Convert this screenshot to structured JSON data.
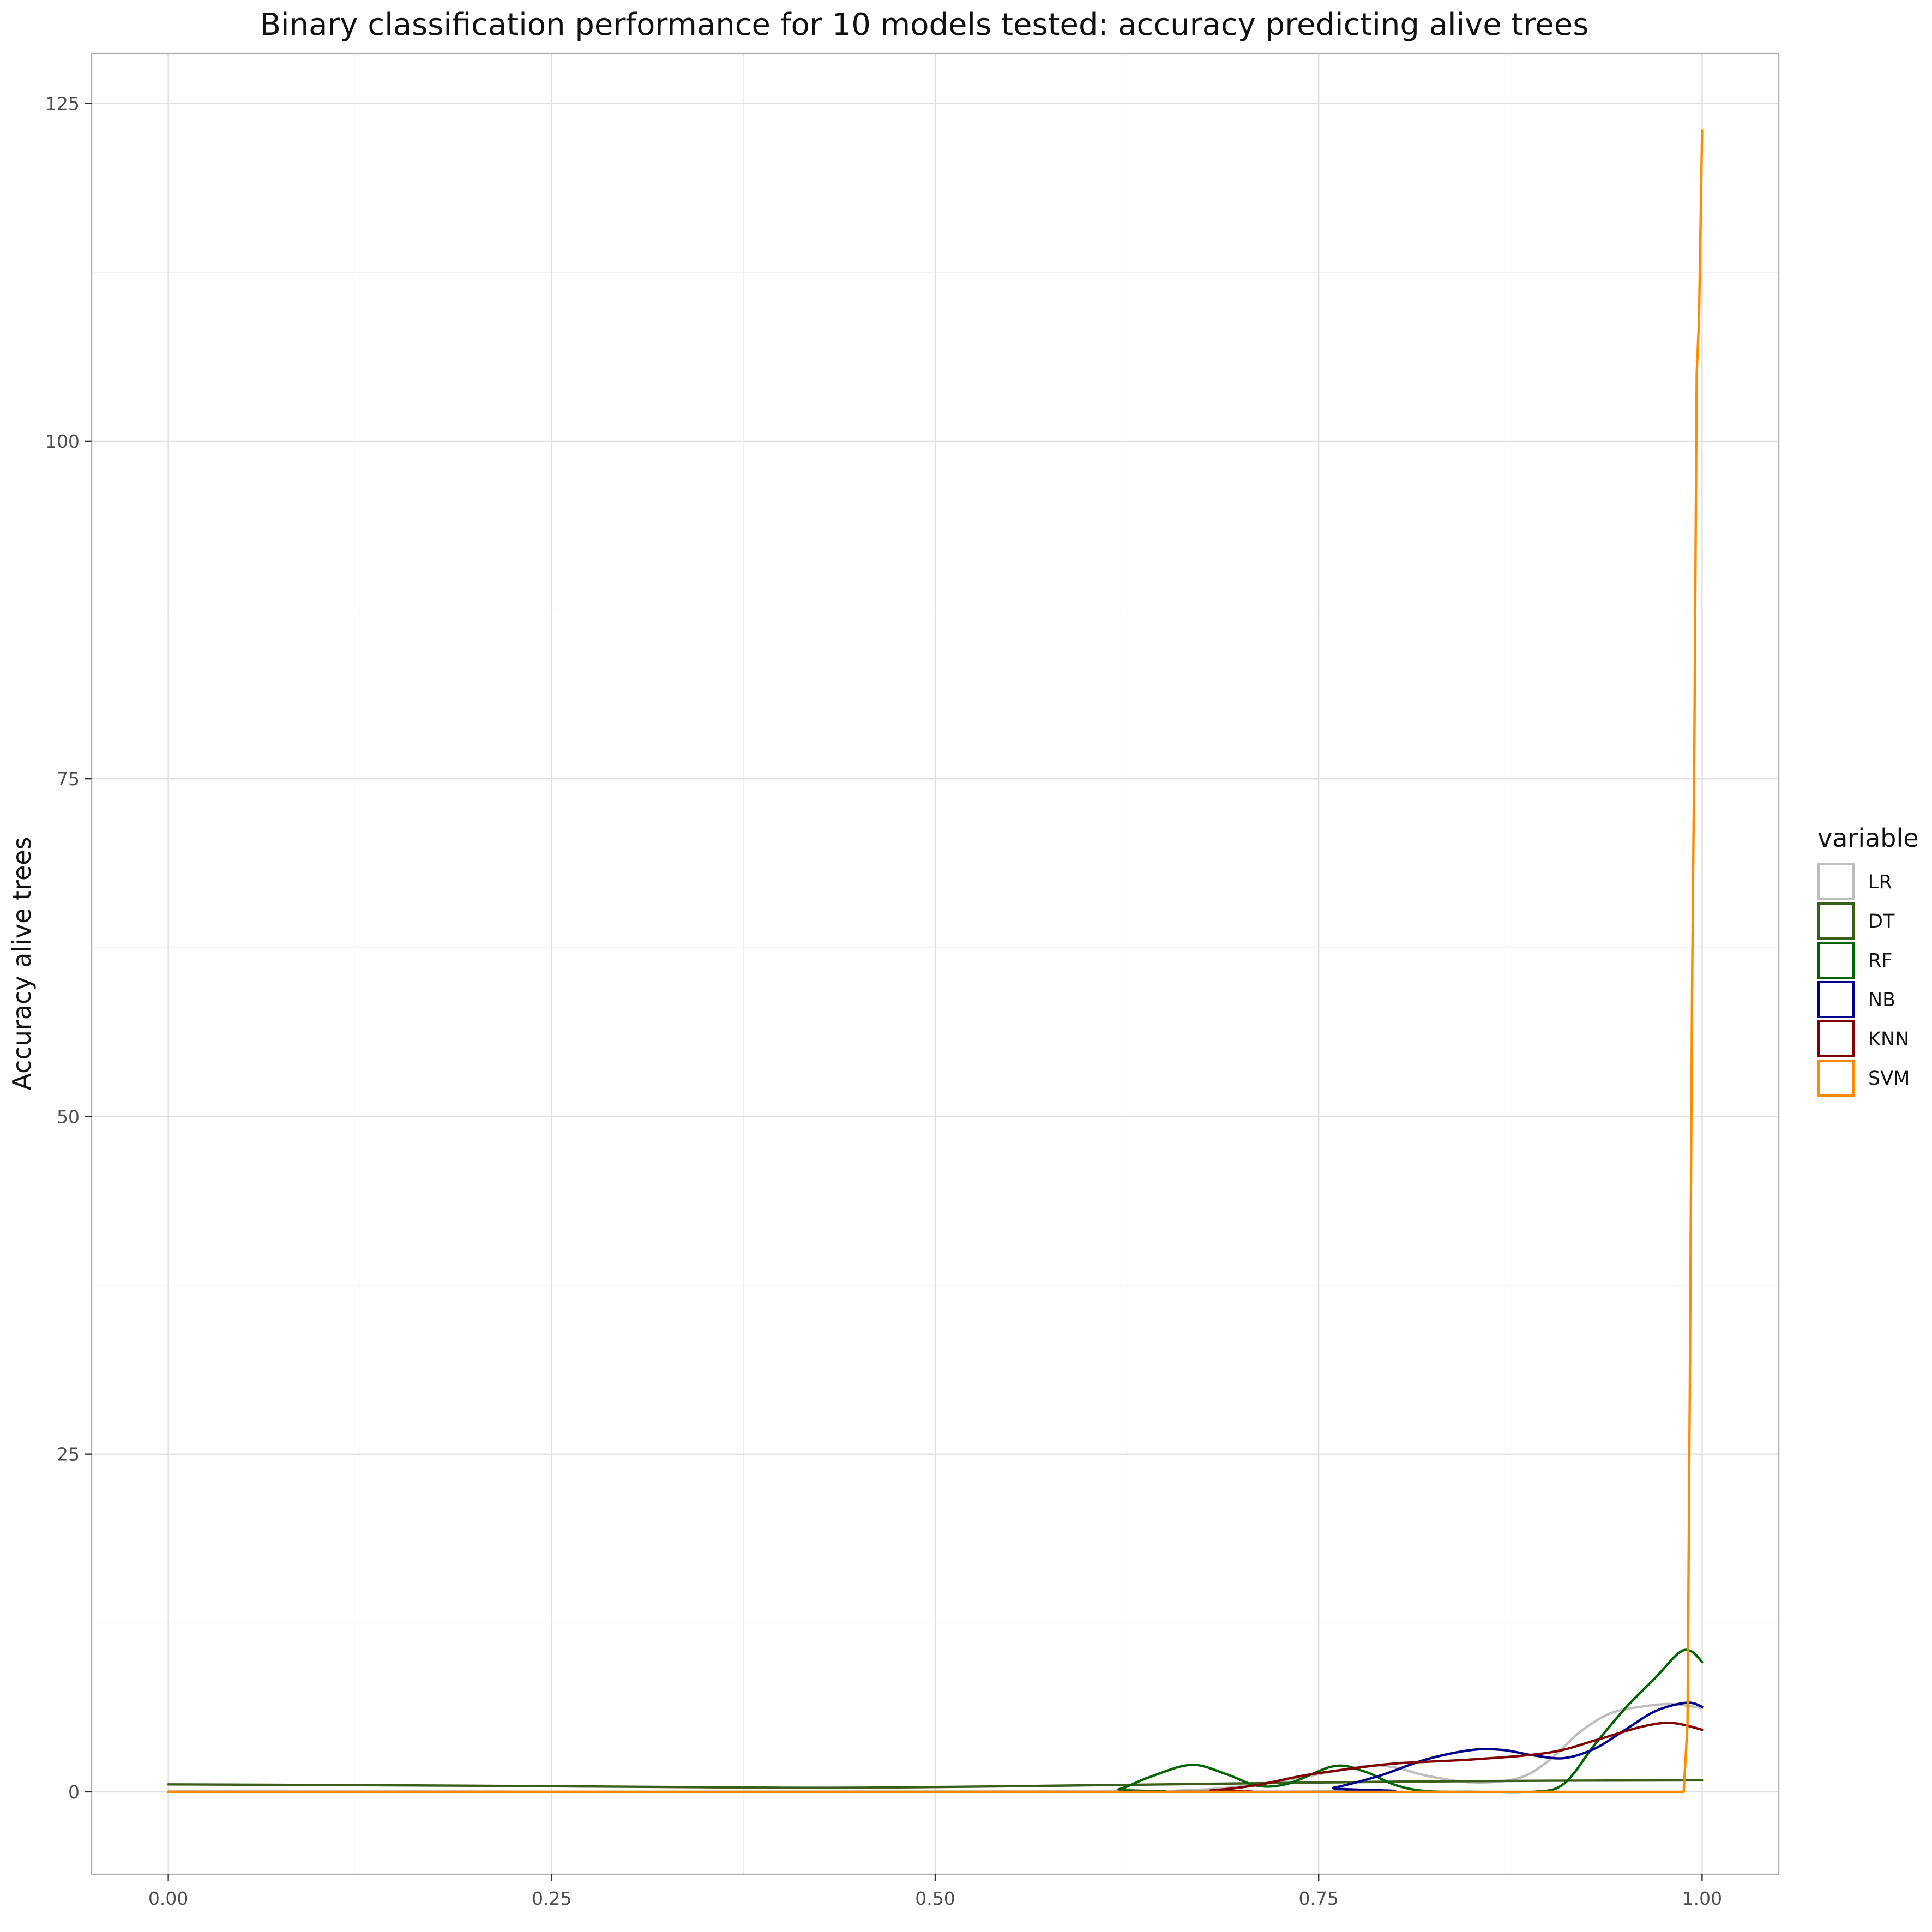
{
  "chart_data": {
    "type": "line",
    "title": "Binary classification performance for 10 models tested: accuracy predicting alive trees",
    "xlabel": "",
    "ylabel": "Accuracy alive trees",
    "xlim": [
      -0.05,
      1.05
    ],
    "ylim": [
      -6.1,
      128.7
    ],
    "x_ticks": [
      0.0,
      0.25,
      0.5,
      0.75,
      1.0
    ],
    "x_tick_labels": [
      "0.00",
      "0.25",
      "0.50",
      "0.75",
      "1.00"
    ],
    "y_ticks": [
      0,
      25,
      50,
      75,
      100,
      125
    ],
    "y_tick_labels": [
      "0",
      "25",
      "50",
      "75",
      "100",
      "125"
    ],
    "grid": true,
    "legend": {
      "title": "variable",
      "placement": "right"
    },
    "series": [
      {
        "name": "LR",
        "color": "#bdbdbd",
        "points": [
          [
            0,
            0
          ],
          [
            0.6,
            0
          ],
          [
            0.66,
            0.1
          ],
          [
            0.7,
            0.4
          ],
          [
            0.74,
            1.1
          ],
          [
            0.78,
            1.9
          ],
          [
            0.8,
            1.8
          ],
          [
            0.82,
            1.2
          ],
          [
            0.85,
            0.7
          ],
          [
            0.88,
            1.0
          ],
          [
            0.9,
            2.3
          ],
          [
            0.92,
            4.4
          ],
          [
            0.94,
            5.8
          ],
          [
            0.96,
            6.3
          ],
          [
            0.98,
            6.5
          ],
          [
            1.0,
            6.2
          ]
        ]
      },
      {
        "name": "DT",
        "color": "#3a5f1a",
        "points": [
          [
            0,
            0.55
          ],
          [
            0.2,
            0.45
          ],
          [
            0.4,
            0.3
          ],
          [
            0.5,
            0.35
          ],
          [
            0.6,
            0.48
          ],
          [
            0.7,
            0.62
          ],
          [
            0.8,
            0.75
          ],
          [
            0.9,
            0.82
          ],
          [
            1.0,
            0.85
          ]
        ]
      },
      {
        "name": "RF",
        "color": "#006400",
        "points": [
          [
            0,
            0
          ],
          [
            0.6,
            0
          ],
          [
            0.62,
            0.2
          ],
          [
            0.64,
            1.1
          ],
          [
            0.667,
            2.0
          ],
          [
            0.69,
            1.3
          ],
          [
            0.71,
            0.45
          ],
          [
            0.73,
            0.6
          ],
          [
            0.76,
            1.9
          ],
          [
            0.78,
            1.5
          ],
          [
            0.8,
            0.5
          ],
          [
            0.82,
            0.05
          ],
          [
            0.85,
            0
          ],
          [
            0.89,
            0
          ],
          [
            0.91,
            0.6
          ],
          [
            0.93,
            3.5
          ],
          [
            0.95,
            6.2
          ],
          [
            0.97,
            8.5
          ],
          [
            0.985,
            10.3
          ],
          [
            0.993,
            10.4
          ],
          [
            1.0,
            9.6
          ]
        ]
      },
      {
        "name": "NB",
        "color": "#00008b",
        "points": [
          [
            0,
            0
          ],
          [
            0.74,
            0
          ],
          [
            0.76,
            0.3
          ],
          [
            0.79,
            1.2
          ],
          [
            0.82,
            2.4
          ],
          [
            0.85,
            3.1
          ],
          [
            0.87,
            3.1
          ],
          [
            0.89,
            2.7
          ],
          [
            0.91,
            2.5
          ],
          [
            0.93,
            3.2
          ],
          [
            0.95,
            4.6
          ],
          [
            0.97,
            6.0
          ],
          [
            0.99,
            6.6
          ],
          [
            1.0,
            6.3
          ]
        ]
      },
      {
        "name": "KNN",
        "color": "#800000",
        "points": [
          [
            0,
            0
          ],
          [
            0.65,
            0
          ],
          [
            0.68,
            0.1
          ],
          [
            0.71,
            0.5
          ],
          [
            0.74,
            1.2
          ],
          [
            0.77,
            1.7
          ],
          [
            0.8,
            2.1
          ],
          [
            0.85,
            2.4
          ],
          [
            0.9,
            2.9
          ],
          [
            0.93,
            3.8
          ],
          [
            0.96,
            4.8
          ],
          [
            0.98,
            5.1
          ],
          [
            1.0,
            4.6
          ]
        ]
      },
      {
        "name": "SVM",
        "color": "#ff8c00",
        "points": [
          [
            0,
            0
          ],
          [
            0.988,
            0
          ],
          [
            0.9905,
            5
          ],
          [
            0.992,
            30
          ],
          [
            0.9935,
            60
          ],
          [
            0.995,
            78
          ],
          [
            0.9965,
            105
          ],
          [
            0.998,
            109
          ],
          [
            1.0,
            123
          ]
        ]
      }
    ]
  }
}
